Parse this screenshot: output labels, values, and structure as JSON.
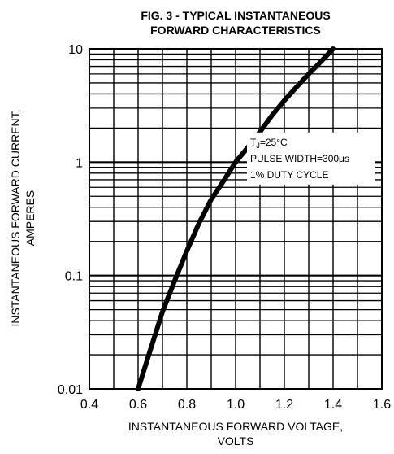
{
  "chart_data": {
    "type": "line",
    "title": [
      "FIG. 3 - TYPICAL INSTANTANEOUS",
      "FORWARD CHARACTERISTICS"
    ],
    "xlabel": [
      "INSTANTANEOUS FORWARD VOLTAGE,",
      "VOLTS"
    ],
    "ylabel": [
      "INSTANTANEOUS FORWARD CURRENT,",
      "AMPERES"
    ],
    "xlim": [
      0.4,
      1.6
    ],
    "ylim": [
      0.01,
      10
    ],
    "y_scale": "log",
    "grid": true,
    "x_ticks": [
      "0.4",
      "0.6",
      "0.8",
      "1.0",
      "1.2",
      "1.4",
      "1.6"
    ],
    "x_tick_values": [
      0.4,
      0.6,
      0.8,
      1.0,
      1.2,
      1.4,
      1.6
    ],
    "y_ticks": [
      "0.01",
      "0.1",
      "1",
      "10"
    ],
    "y_tick_values": [
      0.01,
      0.1,
      1,
      10
    ],
    "annotation": {
      "t_main": "T",
      "t_sub": "J",
      "t_rest": "=25°C",
      "line2": "PULSE WIDTH=300μs",
      "line3": "1% DUTY CYCLE"
    },
    "series": [
      {
        "x": [
          0.6,
          0.65,
          0.7,
          0.75,
          0.8,
          0.85,
          0.9,
          0.95,
          1.0,
          1.05,
          1.1,
          1.15,
          1.2,
          1.25,
          1.3,
          1.35,
          1.4
        ],
        "y": [
          0.01,
          0.022,
          0.048,
          0.09,
          0.165,
          0.29,
          0.47,
          0.68,
          1.0,
          1.35,
          1.85,
          2.6,
          3.5,
          4.6,
          6.0,
          7.7,
          10
        ]
      }
    ]
  }
}
